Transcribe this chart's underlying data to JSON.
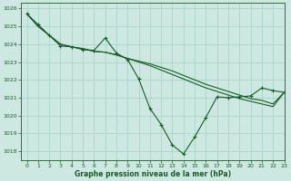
{
  "title": "Graphe pression niveau de la mer (hPa)",
  "background_color": "#cce8e0",
  "grid_color": "#aad4cc",
  "line_color": "#1a5c28",
  "xlim": [
    -0.5,
    23
  ],
  "ylim": [
    1017.5,
    1026.3
  ],
  "yticks": [
    1018,
    1019,
    1020,
    1021,
    1022,
    1023,
    1024,
    1025,
    1026
  ],
  "xticks": [
    0,
    1,
    2,
    3,
    4,
    5,
    6,
    7,
    8,
    9,
    10,
    11,
    12,
    13,
    14,
    15,
    16,
    17,
    18,
    19,
    20,
    21,
    22,
    23
  ],
  "series_main": [
    1025.7,
    1025.1,
    1024.5,
    1023.9,
    1023.85,
    1023.7,
    1023.65,
    1024.35,
    1023.5,
    1023.15,
    1022.05,
    1020.4,
    1019.5,
    1018.35,
    1017.85,
    1018.8,
    1019.9,
    1021.05,
    1021.0,
    1021.05,
    1021.1,
    1021.55,
    1021.4,
    1021.3
  ],
  "series_smooth1": [
    1025.7,
    1025.0,
    1024.5,
    1024.0,
    1023.85,
    1023.75,
    1023.6,
    1023.55,
    1023.4,
    1023.2,
    1023.0,
    1022.8,
    1022.55,
    1022.3,
    1022.05,
    1021.8,
    1021.55,
    1021.35,
    1021.15,
    1020.95,
    1020.8,
    1020.65,
    1020.5,
    1021.3
  ],
  "series_smooth2": [
    1025.7,
    1025.0,
    1024.5,
    1024.0,
    1023.85,
    1023.75,
    1023.6,
    1023.55,
    1023.4,
    1023.2,
    1023.05,
    1022.9,
    1022.7,
    1022.5,
    1022.25,
    1022.0,
    1021.75,
    1021.55,
    1021.35,
    1021.15,
    1020.95,
    1020.85,
    1020.65,
    1021.3
  ]
}
